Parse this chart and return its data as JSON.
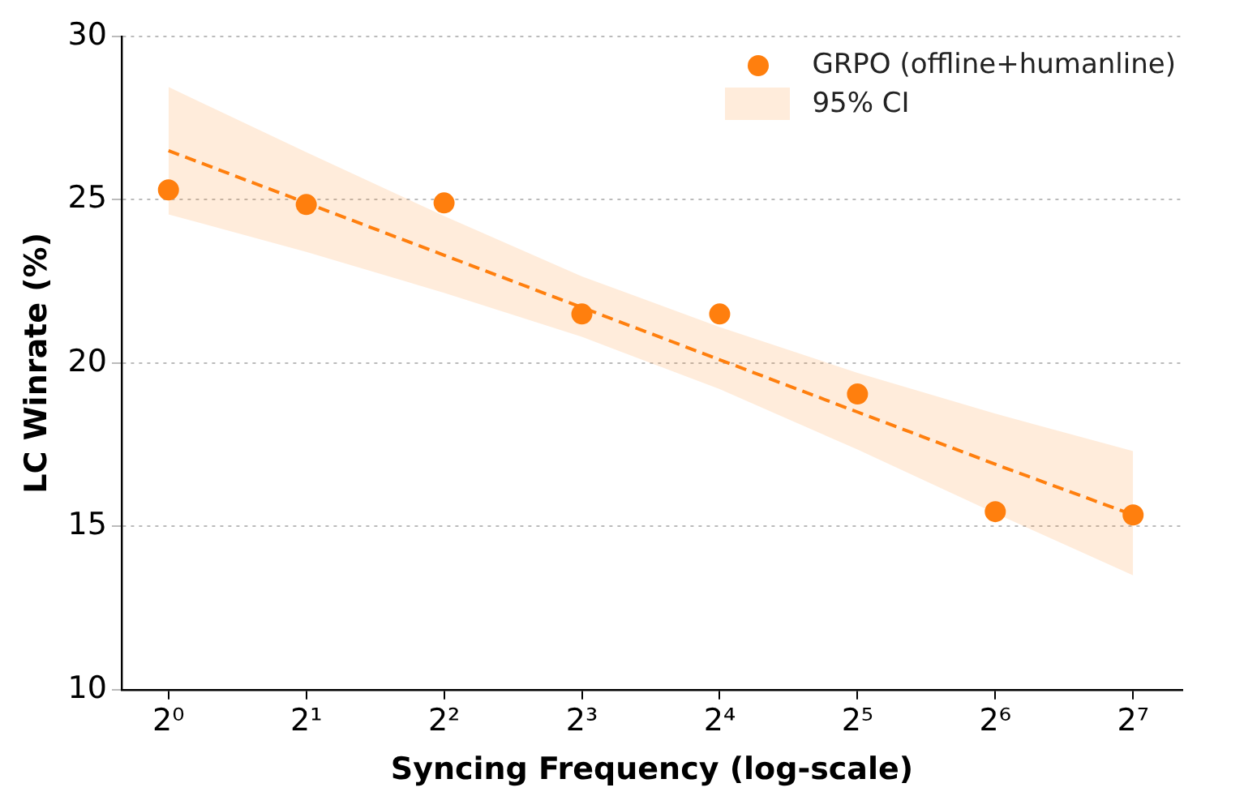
{
  "chart_data": {
    "type": "scatter",
    "xlabel": "Syncing Frequency (log-scale)",
    "ylabel": "LC Winrate (%)",
    "log": "x",
    "xlim": [
      0.79,
      164
    ],
    "xticks": [
      {
        "value": 1,
        "label": "2⁰"
      },
      {
        "value": 2,
        "label": "2¹"
      },
      {
        "value": 4,
        "label": "2²"
      },
      {
        "value": 8,
        "label": "2³"
      },
      {
        "value": 16,
        "label": "2⁴"
      },
      {
        "value": 32,
        "label": "2⁵"
      },
      {
        "value": 64,
        "label": "2⁶"
      },
      {
        "value": 128,
        "label": "2⁷"
      }
    ],
    "ylim": [
      10,
      30
    ],
    "yticks": [
      10,
      15,
      20,
      25,
      30
    ],
    "grid": "y",
    "legend": "top right",
    "marker": "circle",
    "series": [
      {
        "type": "scatter",
        "name": "GRPO (offline+humanline)",
        "color": "#ff7f0e",
        "x": [
          1,
          2,
          4,
          8,
          16,
          32,
          64,
          128
        ],
        "values": [
          25.3,
          24.85,
          24.9,
          21.5,
          21.5,
          19.05,
          15.45,
          15.35
        ]
      },
      {
        "type": "line",
        "name": "95% CI",
        "color": "#ff7f0e",
        "line_style": "dashed",
        "marker": "none",
        "x": [
          1,
          2,
          4,
          8,
          16,
          32,
          64,
          128
        ],
        "values": [
          26.5,
          24.9,
          23.3,
          21.7,
          20.1,
          18.5,
          16.9,
          15.35
        ],
        "lower": [
          24.55,
          23.4,
          22.15,
          20.8,
          19.2,
          17.35,
          15.4,
          13.5
        ],
        "upper": [
          28.45,
          26.45,
          24.5,
          22.65,
          21.1,
          19.7,
          18.45,
          17.3
        ]
      }
    ]
  }
}
